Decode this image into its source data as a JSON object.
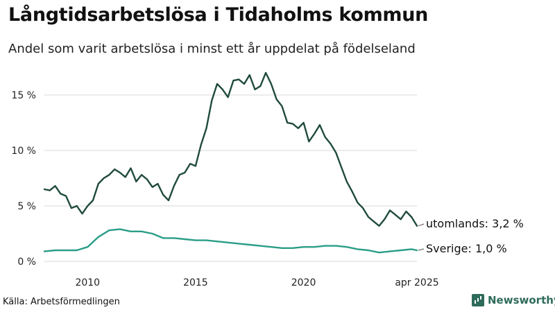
{
  "title": "Långtidsarbetslösa i Tidaholms kommun",
  "subtitle": "Andel som varit arbetslösa i minst ett år uppdelat på födelseland",
  "source": "Källa: Arbetsförmedlingen",
  "brand": {
    "name": "Newsworthy",
    "icon": "newsworthy-logo-icon",
    "color": "#2e6b5a"
  },
  "chart_data": {
    "type": "line",
    "x_axis": {
      "range": [
        2008.0,
        2025.25
      ],
      "ticks": [
        {
          "value": 2010,
          "label": "2010"
        },
        {
          "value": 2015,
          "label": "2015"
        },
        {
          "value": 2020,
          "label": "2020"
        },
        {
          "value": 2025.25,
          "label": "apr 2025"
        }
      ]
    },
    "y_axis": {
      "range": [
        0,
        17
      ],
      "ticks": [
        {
          "value": 0,
          "label": "0 %"
        },
        {
          "value": 5,
          "label": "5 %"
        },
        {
          "value": 10,
          "label": "10 %"
        },
        {
          "value": 15,
          "label": "15 %"
        }
      ]
    },
    "grid": true,
    "legend": "end-labels",
    "series": [
      {
        "name": "utomlands",
        "end_label": "utomlands: 3,2 %",
        "color": "#1f4a3c",
        "points": [
          [
            2008.0,
            6.5
          ],
          [
            2008.25,
            6.4
          ],
          [
            2008.5,
            6.8
          ],
          [
            2008.75,
            6.1
          ],
          [
            2009.0,
            5.9
          ],
          [
            2009.25,
            4.8
          ],
          [
            2009.5,
            5.0
          ],
          [
            2009.75,
            4.3
          ],
          [
            2010.0,
            5.0
          ],
          [
            2010.25,
            5.5
          ],
          [
            2010.5,
            7.0
          ],
          [
            2010.75,
            7.5
          ],
          [
            2011.0,
            7.8
          ],
          [
            2011.25,
            8.3
          ],
          [
            2011.5,
            8.0
          ],
          [
            2011.75,
            7.6
          ],
          [
            2012.0,
            8.4
          ],
          [
            2012.25,
            7.2
          ],
          [
            2012.5,
            7.8
          ],
          [
            2012.75,
            7.4
          ],
          [
            2013.0,
            6.7
          ],
          [
            2013.25,
            7.0
          ],
          [
            2013.5,
            6.0
          ],
          [
            2013.75,
            5.5
          ],
          [
            2014.0,
            6.8
          ],
          [
            2014.25,
            7.8
          ],
          [
            2014.5,
            8.0
          ],
          [
            2014.75,
            8.8
          ],
          [
            2015.0,
            8.6
          ],
          [
            2015.25,
            10.5
          ],
          [
            2015.5,
            12.0
          ],
          [
            2015.75,
            14.5
          ],
          [
            2016.0,
            16.0
          ],
          [
            2016.25,
            15.5
          ],
          [
            2016.5,
            14.8
          ],
          [
            2016.75,
            16.3
          ],
          [
            2017.0,
            16.4
          ],
          [
            2017.25,
            16.0
          ],
          [
            2017.5,
            16.8
          ],
          [
            2017.75,
            15.5
          ],
          [
            2018.0,
            15.8
          ],
          [
            2018.25,
            17.0
          ],
          [
            2018.5,
            16.0
          ],
          [
            2018.75,
            14.6
          ],
          [
            2019.0,
            14.0
          ],
          [
            2019.25,
            12.5
          ],
          [
            2019.5,
            12.4
          ],
          [
            2019.75,
            12.0
          ],
          [
            2020.0,
            12.5
          ],
          [
            2020.25,
            10.8
          ],
          [
            2020.5,
            11.5
          ],
          [
            2020.75,
            12.3
          ],
          [
            2021.0,
            11.2
          ],
          [
            2021.25,
            10.6
          ],
          [
            2021.5,
            9.8
          ],
          [
            2021.75,
            8.5
          ],
          [
            2022.0,
            7.2
          ],
          [
            2022.25,
            6.3
          ],
          [
            2022.5,
            5.3
          ],
          [
            2022.75,
            4.8
          ],
          [
            2023.0,
            4.0
          ],
          [
            2023.25,
            3.6
          ],
          [
            2023.5,
            3.2
          ],
          [
            2023.75,
            3.8
          ],
          [
            2024.0,
            4.6
          ],
          [
            2024.25,
            4.2
          ],
          [
            2024.5,
            3.8
          ],
          [
            2024.75,
            4.5
          ],
          [
            2025.0,
            4.0
          ],
          [
            2025.25,
            3.2
          ]
        ]
      },
      {
        "name": "Sverige",
        "end_label": "Sverige: 1,0 %",
        "color": "#2a9d88",
        "points": [
          [
            2008.0,
            0.9
          ],
          [
            2008.5,
            1.0
          ],
          [
            2009.0,
            1.0
          ],
          [
            2009.5,
            1.0
          ],
          [
            2010.0,
            1.3
          ],
          [
            2010.5,
            2.2
          ],
          [
            2011.0,
            2.8
          ],
          [
            2011.5,
            2.9
          ],
          [
            2012.0,
            2.7
          ],
          [
            2012.5,
            2.7
          ],
          [
            2013.0,
            2.5
          ],
          [
            2013.5,
            2.1
          ],
          [
            2014.0,
            2.1
          ],
          [
            2014.5,
            2.0
          ],
          [
            2015.0,
            1.9
          ],
          [
            2015.5,
            1.9
          ],
          [
            2016.0,
            1.8
          ],
          [
            2016.5,
            1.7
          ],
          [
            2017.0,
            1.6
          ],
          [
            2017.5,
            1.5
          ],
          [
            2018.0,
            1.4
          ],
          [
            2018.5,
            1.3
          ],
          [
            2019.0,
            1.2
          ],
          [
            2019.5,
            1.2
          ],
          [
            2020.0,
            1.3
          ],
          [
            2020.5,
            1.3
          ],
          [
            2021.0,
            1.4
          ],
          [
            2021.5,
            1.4
          ],
          [
            2022.0,
            1.3
          ],
          [
            2022.5,
            1.1
          ],
          [
            2023.0,
            1.0
          ],
          [
            2023.5,
            0.8
          ],
          [
            2024.0,
            0.9
          ],
          [
            2024.5,
            1.0
          ],
          [
            2025.0,
            1.1
          ],
          [
            2025.25,
            1.0
          ]
        ]
      }
    ]
  }
}
